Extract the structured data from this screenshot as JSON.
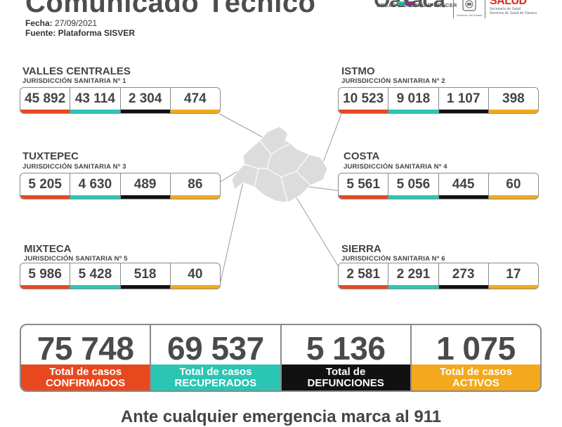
{
  "header": {
    "title": "Comunicado Técnico",
    "fecha_label": "Fecha:",
    "fecha_value": "27/09/2021",
    "fuente_label": "Fuente: Plataforma SISVER"
  },
  "logos": {
    "oaxaca_word": "Oaxaca",
    "oaxaca_tagline": "CREAR•CONSTRUIR•CRECER",
    "seal_caption": "Gobierno del Estado",
    "salud_mark": "SALUD",
    "salud_caption_1": "Secretaría de Salud",
    "salud_caption_2": "Servicios de Salud de Oaxaca"
  },
  "colors": {
    "confirmados": "#e8481e",
    "recuperados": "#2bc5b4",
    "defunciones": "#111111",
    "activos": "#f4a81c",
    "map_fill": "#dcdcdc",
    "map_line": "#ffffff"
  },
  "regions": [
    {
      "name": "VALLES CENTRALES",
      "jurisdiccion": "JURISDICCIÓN SANITARIA Nº 1",
      "values": [
        "45 892",
        "43 114",
        "2 304",
        "474"
      ]
    },
    {
      "name": "ISTMO",
      "jurisdiccion": "JURISDICCIÓN SANITARIA Nº 2",
      "values": [
        "10 523",
        "9 018",
        "1 107",
        "398"
      ]
    },
    {
      "name": "TUXTEPEC",
      "jurisdiccion": "JURISDICCIÓN SANITARIA Nº 3",
      "values": [
        "5 205",
        "4 630",
        "489",
        "86"
      ]
    },
    {
      "name": "COSTA",
      "jurisdiccion": "JURISDICCIÓN SANITARIA Nº 4",
      "values": [
        "5 561",
        "5 056",
        "445",
        "60"
      ]
    },
    {
      "name": "MIXTECA",
      "jurisdiccion": "JURISDICCIÓN SANITARIA Nº 5",
      "values": [
        "5 986",
        "5 428",
        "518",
        "40"
      ]
    },
    {
      "name": "SIERRA",
      "jurisdiccion": "JURISDICCIÓN SANITARIA Nº 6",
      "values": [
        "2 581",
        "2 291",
        "273",
        "17"
      ]
    }
  ],
  "totals": [
    {
      "value": "75 748",
      "line1": "Total de casos",
      "line2": "CONFIRMADOS"
    },
    {
      "value": "69 537",
      "line1": "Total de casos",
      "line2": "RECUPERADOS"
    },
    {
      "value": "5 136",
      "line1": "Total de",
      "line2": "DEFUNCIONES"
    },
    {
      "value": "1 075",
      "line1": "Total de casos",
      "line2": "ACTIVOS"
    }
  ],
  "footer": "Ante cualquier emergencia marca al 911"
}
